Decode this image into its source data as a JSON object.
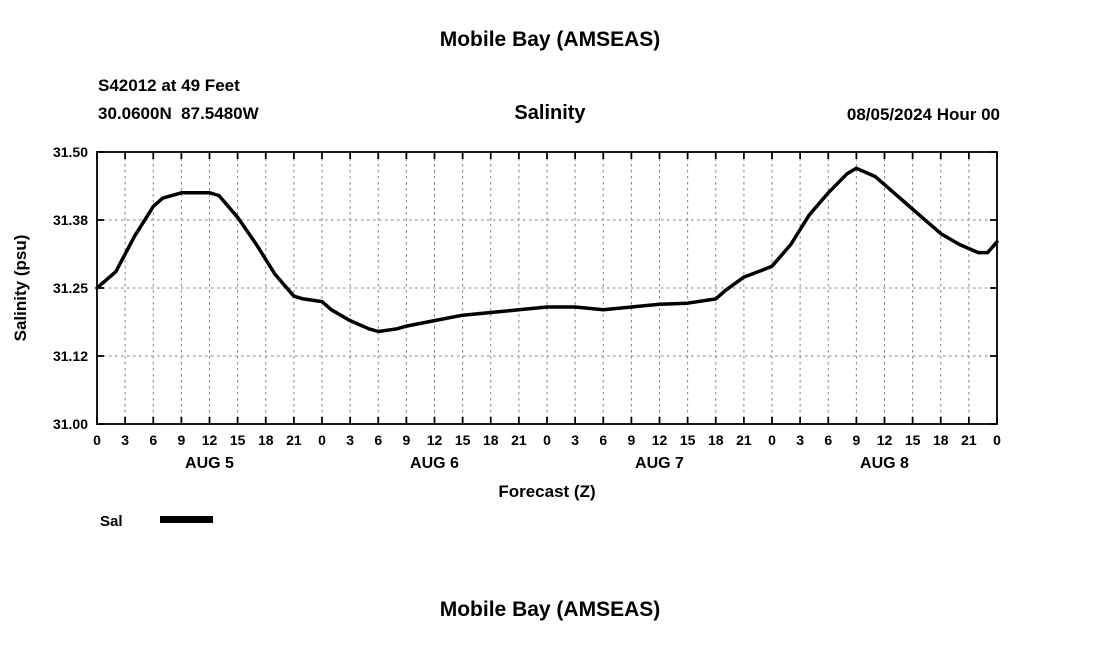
{
  "page": {
    "top_title": "Mobile Bay (AMSEAS)",
    "bottom_title": "Mobile Bay (AMSEAS)"
  },
  "header": {
    "station_line1": "S42012 at 49 Feet",
    "station_line2": "30.0600N  87.5480W",
    "chart_title": "Salinity",
    "datetime": "08/05/2024 Hour 00"
  },
  "legend": {
    "label": "Sal"
  },
  "colors": {
    "line": "#000000",
    "grid": "#808080",
    "axis": "#000000"
  },
  "chart_data": {
    "type": "line",
    "title": "Salinity",
    "xlabel": "Forecast (Z)",
    "ylabel": "Salinity (psu)",
    "grid": true,
    "legend_position": "bottom-left",
    "ylim": [
      31.0,
      31.5
    ],
    "xlim_hours": [
      0,
      96
    ],
    "ytick_values": [
      31.0,
      31.125,
      31.25,
      31.375,
      31.5
    ],
    "ytick_labels": [
      "31.00",
      "31.12",
      "31.25",
      "31.38",
      "31.50"
    ],
    "xtick_hours": [
      0,
      3,
      6,
      9,
      12,
      15,
      18,
      21,
      24,
      27,
      30,
      33,
      36,
      39,
      42,
      45,
      48,
      51,
      54,
      57,
      60,
      63,
      66,
      69,
      72,
      75,
      78,
      81,
      84,
      87,
      90,
      93,
      96
    ],
    "xtick_labels": [
      "0",
      "3",
      "6",
      "9",
      "12",
      "15",
      "18",
      "21",
      "0",
      "3",
      "6",
      "9",
      "12",
      "15",
      "18",
      "21",
      "0",
      "3",
      "6",
      "9",
      "12",
      "15",
      "18",
      "21",
      "0",
      "3",
      "6",
      "9",
      "12",
      "15",
      "18",
      "21",
      "0"
    ],
    "day_labels": [
      {
        "label": "AUG 5",
        "hour": 12
      },
      {
        "label": "AUG 6",
        "hour": 36
      },
      {
        "label": "AUG 7",
        "hour": 60
      },
      {
        "label": "AUG 8",
        "hour": 84
      }
    ],
    "series": [
      {
        "name": "Sal",
        "color": "#000000",
        "hours": [
          0,
          2,
          4,
          6,
          7,
          9,
          12,
          13,
          15,
          17,
          19,
          21,
          22,
          24,
          25,
          27,
          29,
          30,
          32,
          33,
          36,
          39,
          42,
          45,
          48,
          51,
          54,
          57,
          60,
          63,
          66,
          67,
          69,
          71,
          72,
          74,
          76,
          78,
          80,
          81,
          83,
          84,
          86,
          88,
          90,
          92,
          94,
          95,
          96
        ],
        "values": [
          31.25,
          31.28,
          31.345,
          31.4,
          31.415,
          31.425,
          31.425,
          31.42,
          31.38,
          31.33,
          31.275,
          31.235,
          31.23,
          31.225,
          31.21,
          31.19,
          31.175,
          31.17,
          31.175,
          31.18,
          31.19,
          31.2,
          31.205,
          31.21,
          31.215,
          31.215,
          31.21,
          31.215,
          31.22,
          31.222,
          31.23,
          31.245,
          31.27,
          31.283,
          31.29,
          31.33,
          31.385,
          31.425,
          31.46,
          31.47,
          31.455,
          31.44,
          31.41,
          31.38,
          31.35,
          31.33,
          31.315,
          31.315,
          31.335
        ]
      }
    ]
  }
}
